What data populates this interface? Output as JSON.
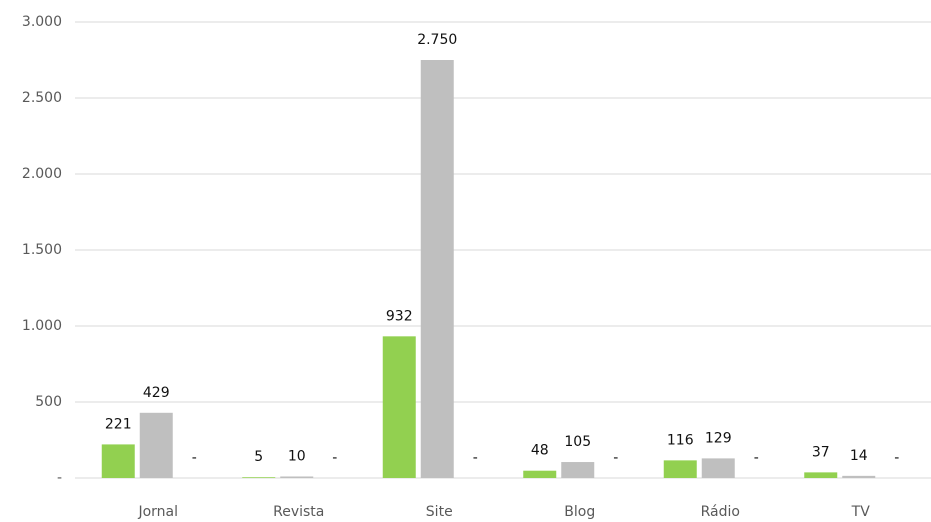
{
  "chart_data": {
    "type": "bar",
    "categories": [
      "Jornal",
      "Revista",
      "Site",
      "Blog",
      "Rádio",
      "TV"
    ],
    "series": [
      {
        "color": "#92d050",
        "values": [
          221,
          5,
          932,
          48,
          116,
          37
        ]
      },
      {
        "color": "#bfbfbf",
        "values": [
          429,
          10,
          2750,
          105,
          129,
          14
        ],
        "value_labels": [
          "429",
          "10",
          "2.750",
          "105",
          "129",
          "14"
        ]
      },
      {
        "color": "#a5a5a5",
        "values": [
          0,
          0,
          0,
          0,
          0,
          0
        ],
        "value_labels": [
          "-",
          "-",
          "-",
          "-",
          "-",
          "-"
        ]
      }
    ],
    "ylim": [
      0,
      3000
    ],
    "yticks": [
      {
        "value": 0,
        "label": "-"
      },
      500,
      {
        "value": 1000,
        "label": "1.000"
      },
      {
        "value": 1500,
        "label": "1.500"
      },
      {
        "value": 2000,
        "label": "2.000"
      },
      {
        "value": 2500,
        "label": "2.500"
      },
      {
        "value": 3000,
        "label": "3.000"
      }
    ],
    "grid": true
  }
}
